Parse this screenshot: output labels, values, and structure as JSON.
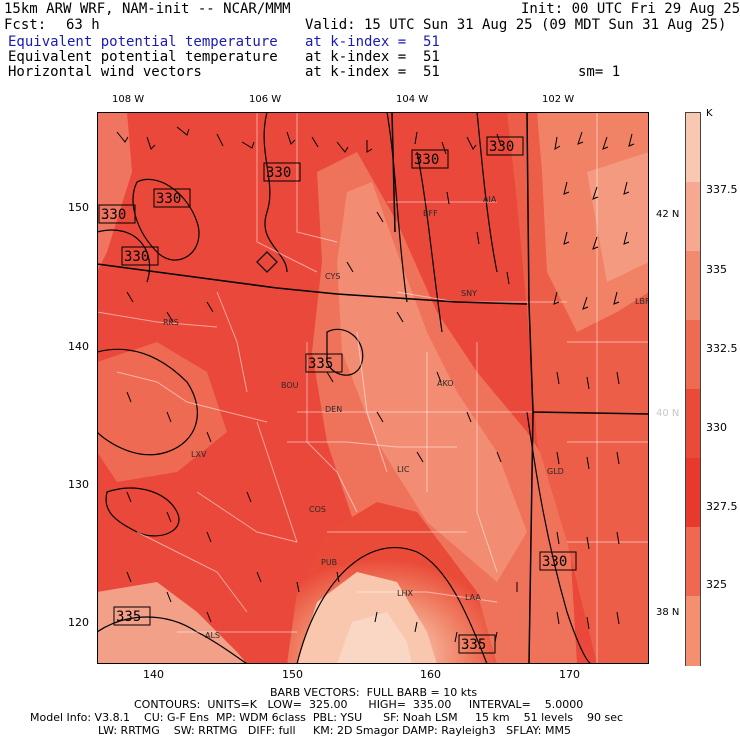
{
  "header": {
    "model": "15km ARW WRF, NAM-init -- NCAR/MMM",
    "init": "Init: 00 UTC Fri 29 Aug 25",
    "fcst_label": "Fcst:",
    "fcst_value": "63 h",
    "valid": "Valid: 15 UTC Sun 31 Aug 25 (09 MDT Sun 31 Aug 25)",
    "fields": [
      {
        "name": "Equivalent potential temperature",
        "level": "at k-index =  51",
        "color": "#1a1ab4"
      },
      {
        "name": "Equivalent potential temperature",
        "level": "at k-index =  51",
        "color": "#000000"
      },
      {
        "name": "Horizontal wind vectors",
        "level": "at k-index =  51",
        "color": "#000000"
      }
    ],
    "sm": "sm= 1"
  },
  "map": {
    "top_lon_labels": [
      "108 W",
      "106 W",
      "104 W",
      "102 W"
    ],
    "left_grid_labels": [
      "150",
      "140",
      "130",
      "120"
    ],
    "bottom_grid_labels": [
      "140",
      "150",
      "160",
      "170"
    ],
    "right_lat_labels": [
      "42 N",
      "40 N",
      "38 N"
    ],
    "stations": [
      "CYS",
      "BFF",
      "AIA",
      "SNY",
      "LBF",
      "RKS",
      "BOU",
      "DEN",
      "AKO",
      "LXV",
      "LIC",
      "GLD",
      "COS",
      "PUB",
      "LHX",
      "LAA",
      "ALS"
    ],
    "contour_labels": [
      "330",
      "330",
      "330",
      "330",
      "330",
      "330",
      "335",
      "335",
      "335",
      "330"
    ]
  },
  "colorbar": {
    "unit": "K",
    "labels": [
      "337.5",
      "335",
      "332.5",
      "330",
      "327.5",
      "325"
    ],
    "colors": [
      "#f8c8b0",
      "#f6a890",
      "#f28a70",
      "#ee6a50",
      "#ea4a38",
      "#e83a2c",
      "#f06850",
      "#f49070"
    ]
  },
  "footer": {
    "barb": "BARB VECTORS:  FULL BARB = 10 kts",
    "contours": "CONTOURS:  UNITS=K   LOW=  325.00      HIGH=  335.00     INTERVAL=    5.0000",
    "model_info_1": "Model Info: V3.8.1    CU: G-F Ens  MP: WDM 6class  PBL: YSU      SF: Noah LSM     15 km    51 levels    90 sec",
    "model_info_2": "LW: RRTMG    SW: RRTMG   DIFF: full     KM: 2D Smagor DAMP: Rayleigh3   SFLAY: MM5"
  }
}
